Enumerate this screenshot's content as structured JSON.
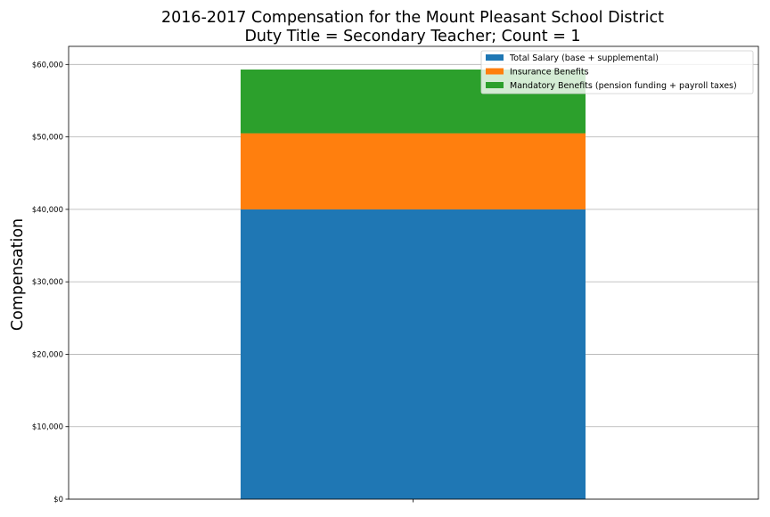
{
  "chart_data": {
    "type": "bar",
    "stacked": true,
    "title": [
      "2016-2017 Compensation for the Mount Pleasant School District",
      "Duty Title = Secondary Teacher; Count = 1"
    ],
    "xlabel": "",
    "ylabel": "Compensation",
    "categories": [
      ""
    ],
    "ylim": [
      0,
      62500
    ],
    "yticks": [
      0,
      10000,
      20000,
      30000,
      40000,
      50000,
      60000
    ],
    "ytick_labels": [
      "$0",
      "$10,000",
      "$20,000",
      "$30,000",
      "$40,000",
      "$50,000",
      "$60,000"
    ],
    "grid": "horizontal",
    "legend_position": "top-right",
    "series": [
      {
        "name": "Total Salary (base + supplemental)",
        "values": [
          40000
        ],
        "color": "#1f77b4"
      },
      {
        "name": "Insurance Benefits",
        "values": [
          10500
        ],
        "color": "#ff7f0e"
      },
      {
        "name": "Mandatory Benefits (pension funding + payroll taxes)",
        "values": [
          8800
        ],
        "color": "#2ca02c"
      }
    ]
  }
}
